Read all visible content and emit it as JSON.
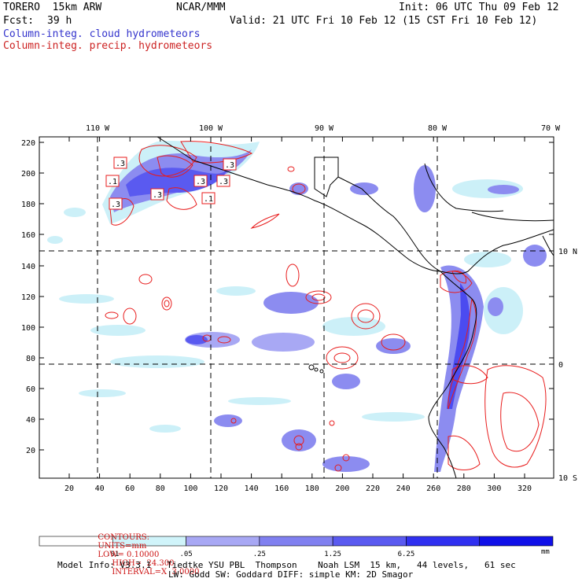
{
  "header": {
    "model": "TORERO  15km ARW",
    "center": "NCAR/MMM",
    "init": "Init: 06 UTC Thu 09 Feb 12",
    "fcst_label": "Fcst:",
    "fcst_value": "39 h",
    "valid": "Valid: 21 UTC Fri 10 Feb 12 (15 CST Fri 10 Feb 12)",
    "legend_cloud": "Column-integ. cloud hydrometeors",
    "legend_precip": "Column-integ. precip. hydrometeors"
  },
  "colors": {
    "cloud_light": "#ccf0f8",
    "cloud_mid": "#8c8cf0",
    "cloud_dark": "#4b4bf0",
    "precip_contour": "#e81c1c"
  },
  "map": {
    "lon_labels": [
      "110 W",
      "100 W",
      "90 W",
      "80 W",
      "70 W"
    ],
    "lat_labels": [
      "10 N",
      "0",
      "10 S"
    ],
    "y_ticks": [
      "220",
      "200",
      "180",
      "160",
      "140",
      "120",
      "100",
      "80",
      "60",
      "40",
      "20"
    ],
    "x_ticks": [
      "20",
      "40",
      "60",
      "80",
      "100",
      "120",
      "140",
      "160",
      "180",
      "200",
      "220",
      "240",
      "260",
      "280",
      "300",
      "320"
    ],
    "contour_labels": [
      ".3",
      ".1",
      ".3",
      ".3",
      ".3",
      ".3",
      ".1",
      ".3"
    ]
  },
  "contours_line": {
    "label": "CONTOURS:",
    "units": "UNITS=mm",
    "low": "LOW= 0.10000",
    "high": "HIGH=  24.300",
    "interval": "INTERVAL=X  3.0000"
  },
  "colorbar": {
    "labels": [
      ".01",
      ".05",
      ".25",
      "1.25",
      "6.25"
    ],
    "unit": "mm",
    "colors": [
      "#ffffff",
      "#d0f4fa",
      "#a8a8f4",
      "#8080f0",
      "#5a5af0",
      "#3030f0",
      "#1010e8"
    ]
  },
  "model_info": {
    "line1": "Model Info: V3.3.1   Tiedtke YSU PBL  Thompson    Noah LSM  15 km,   44 levels,   61 sec",
    "line2": "LW: Godd SW: Goddard DIFF: simple KM: 2D Smagor"
  }
}
